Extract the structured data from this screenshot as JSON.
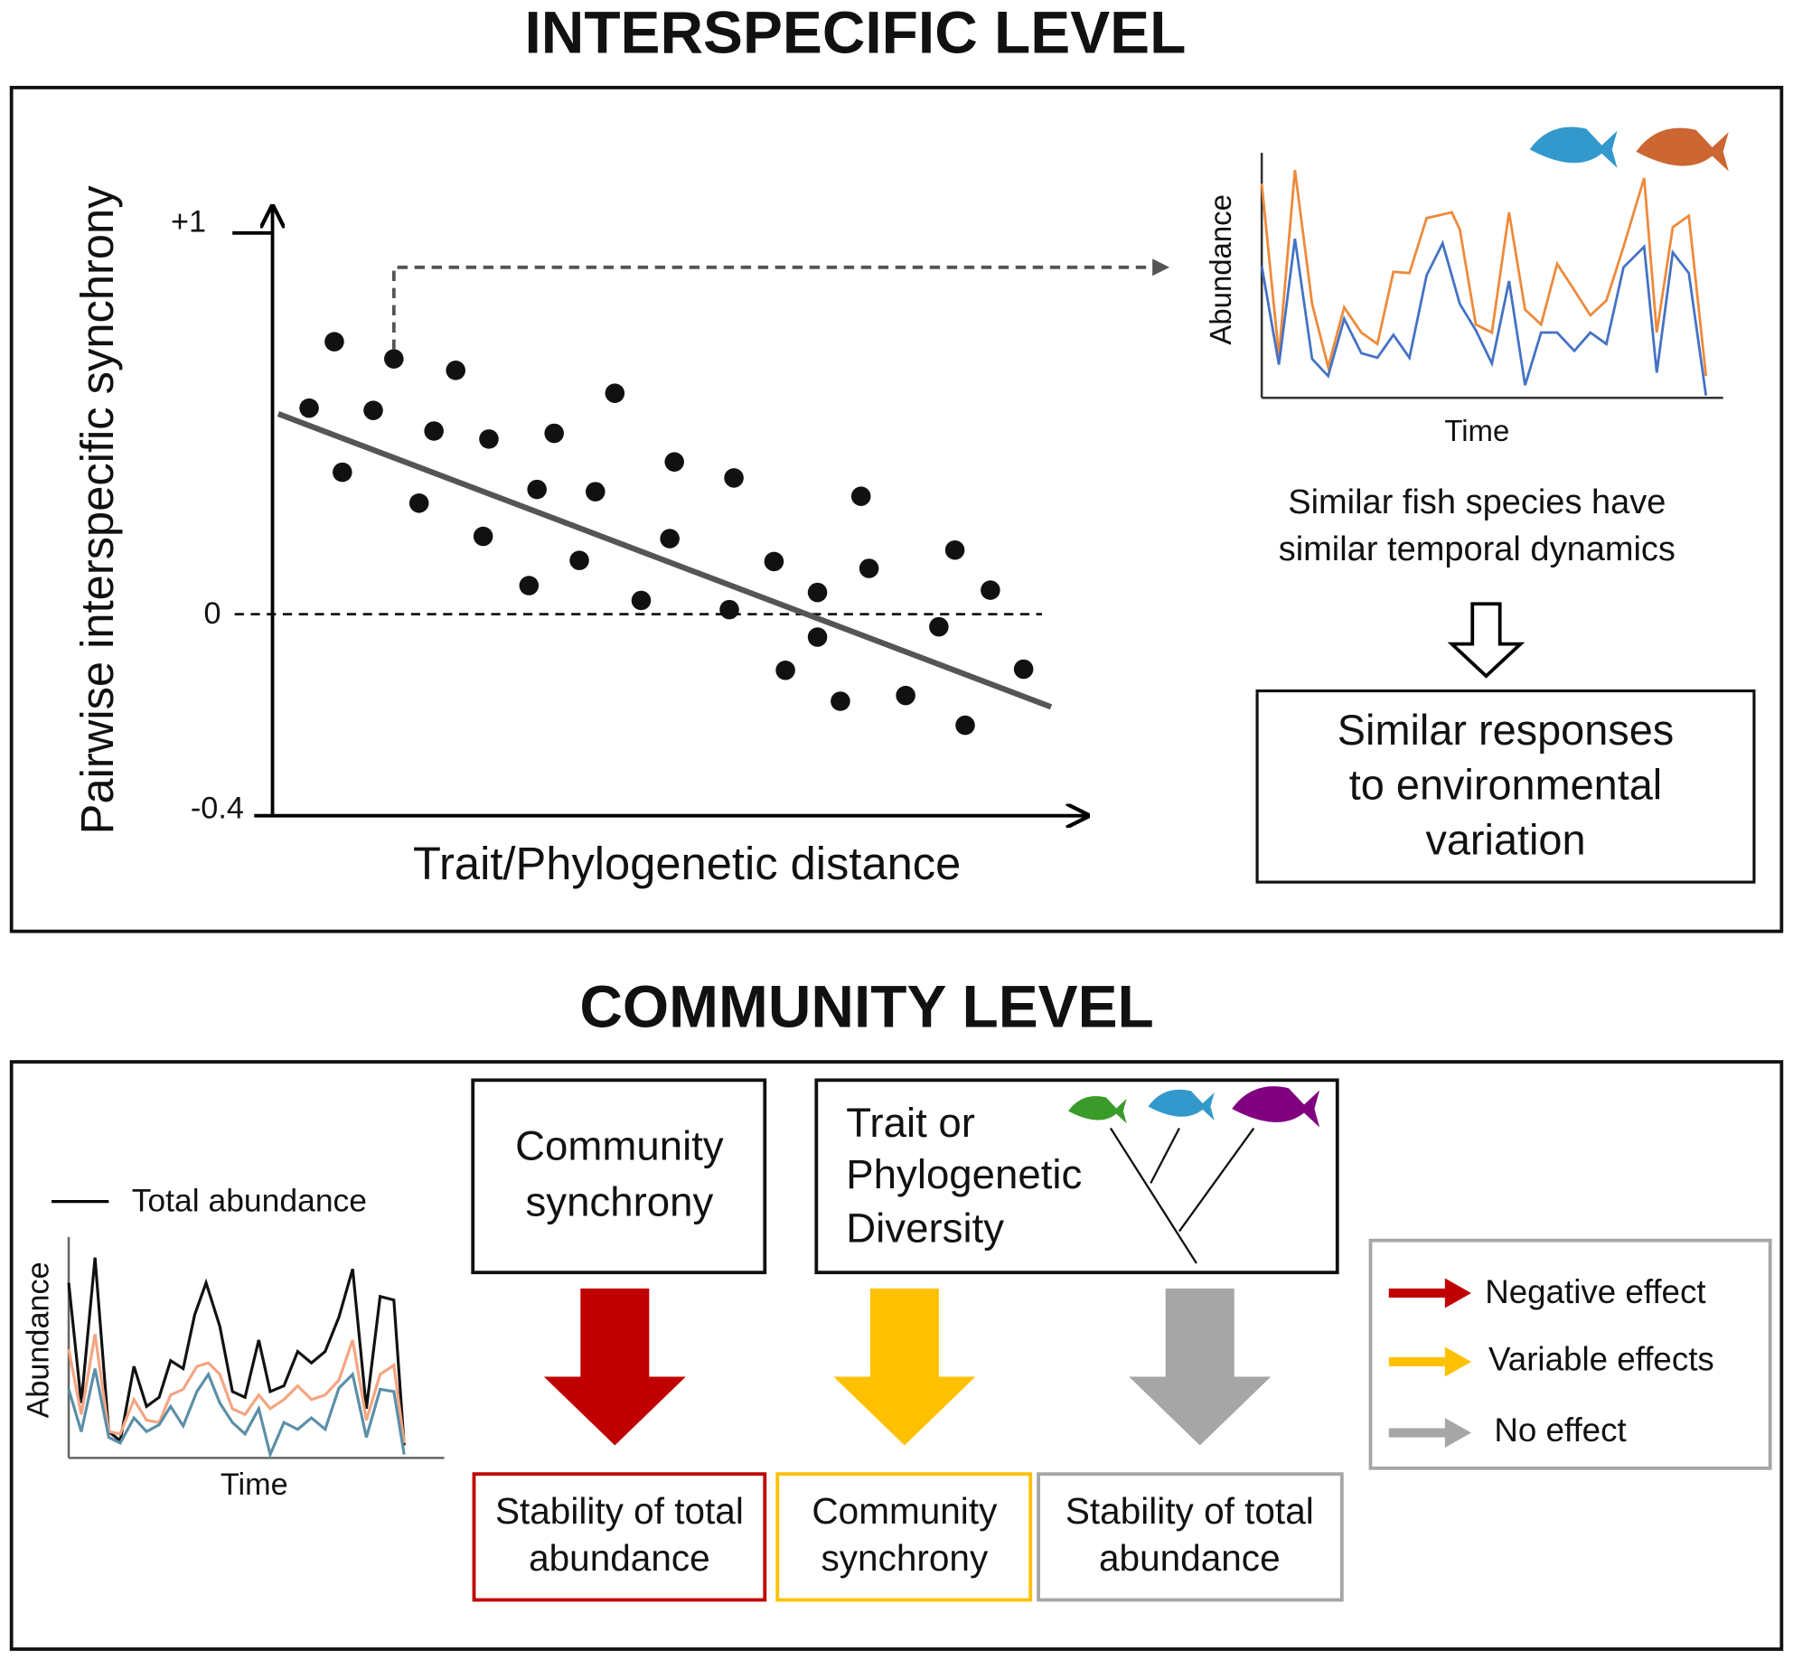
{
  "interspecific": {
    "title": "INTERSPECIFIC LEVEL",
    "y_label": "Pairwise interspecific synchrony",
    "x_label": "Trait/Phylogenetic distance",
    "y_ticks": [
      "+1",
      "0",
      "-0.4"
    ],
    "inset": {
      "y_label": "Abundance",
      "x_label": "Time"
    },
    "caption": [
      "Similar fish species have",
      "similar temporal dynamics"
    ],
    "result": [
      "Similar responses",
      "to environmental",
      "variation"
    ]
  },
  "community": {
    "title": "COMMUNITY LEVEL",
    "legend_line": "Total abundance",
    "inset": {
      "y_label": "Abundance",
      "x_label": "Time"
    },
    "box_synchrony": [
      "Community",
      "synchrony"
    ],
    "box_diversity": [
      "Trait or",
      "Phylogenetic",
      "Diversity"
    ],
    "outcomes": [
      [
        "Stability of total",
        "abundance"
      ],
      [
        "Community",
        "synchrony"
      ],
      [
        "Stability of total",
        "abundance"
      ]
    ],
    "legend": [
      "Negative effect",
      "Variable effects",
      "No effect"
    ]
  }
}
